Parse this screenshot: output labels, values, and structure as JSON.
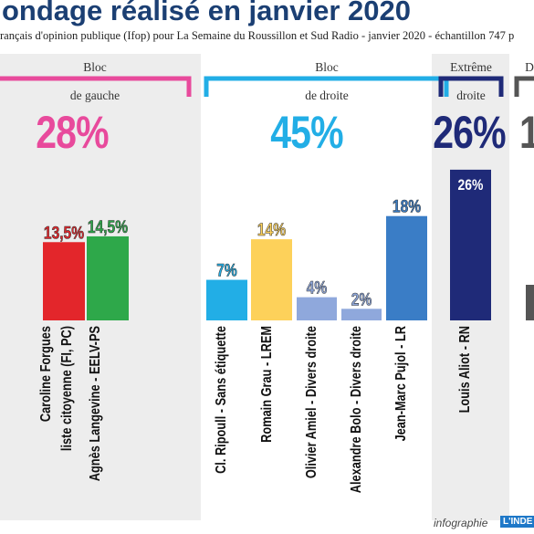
{
  "title": "ondage réalisé en janvier 2020",
  "subtitle": "rançais d'opinion publique (Ifop) pour La Semaine du Roussillon et Sud Radio - janvier 2020 - échantillon 747 p",
  "blocs": [
    {
      "line1": "Bloc",
      "line2": "de gauche",
      "total": "28%",
      "color": "#e84a9c"
    },
    {
      "line1": "Bloc",
      "line2": "de droite",
      "total": "45%",
      "color": "#22aee6"
    },
    {
      "line1": "Extrême",
      "line2": "droite",
      "total": "26%",
      "color": "#1f2a78"
    },
    {
      "line1": "D",
      "line2": "",
      "total": "1",
      "color": "#555555"
    }
  ],
  "footer": {
    "text": "infographie",
    "logo": "L'INDE"
  },
  "chart_data": {
    "type": "bar",
    "categories": [
      "Caroline Forgues|liste citoyenne (FI, PC)",
      "Agnès Langevine - EELV-PS",
      "Cl. Ripoull - Sans étiquette",
      "Romain Grau - LREM",
      "Olivier Amiel - Divers droite",
      "Alexandre Bolo - Divers droite",
      "Jean-Marc Pujol - LR",
      "Louis Aliot - RN"
    ],
    "values": [
      13.5,
      14.5,
      7,
      14,
      4,
      2,
      18,
      26
    ],
    "value_labels": [
      "13,5%",
      "14,5%",
      "7%",
      "14%",
      "4%",
      "2%",
      "18%",
      "26%"
    ],
    "colors": [
      "#e3262b",
      "#2ea84a",
      "#22aee6",
      "#fdd15a",
      "#8fa8dc",
      "#8fa8dc",
      "#3a7dc6",
      "#1f2a78"
    ],
    "xlabel": "",
    "ylabel": ""
  }
}
